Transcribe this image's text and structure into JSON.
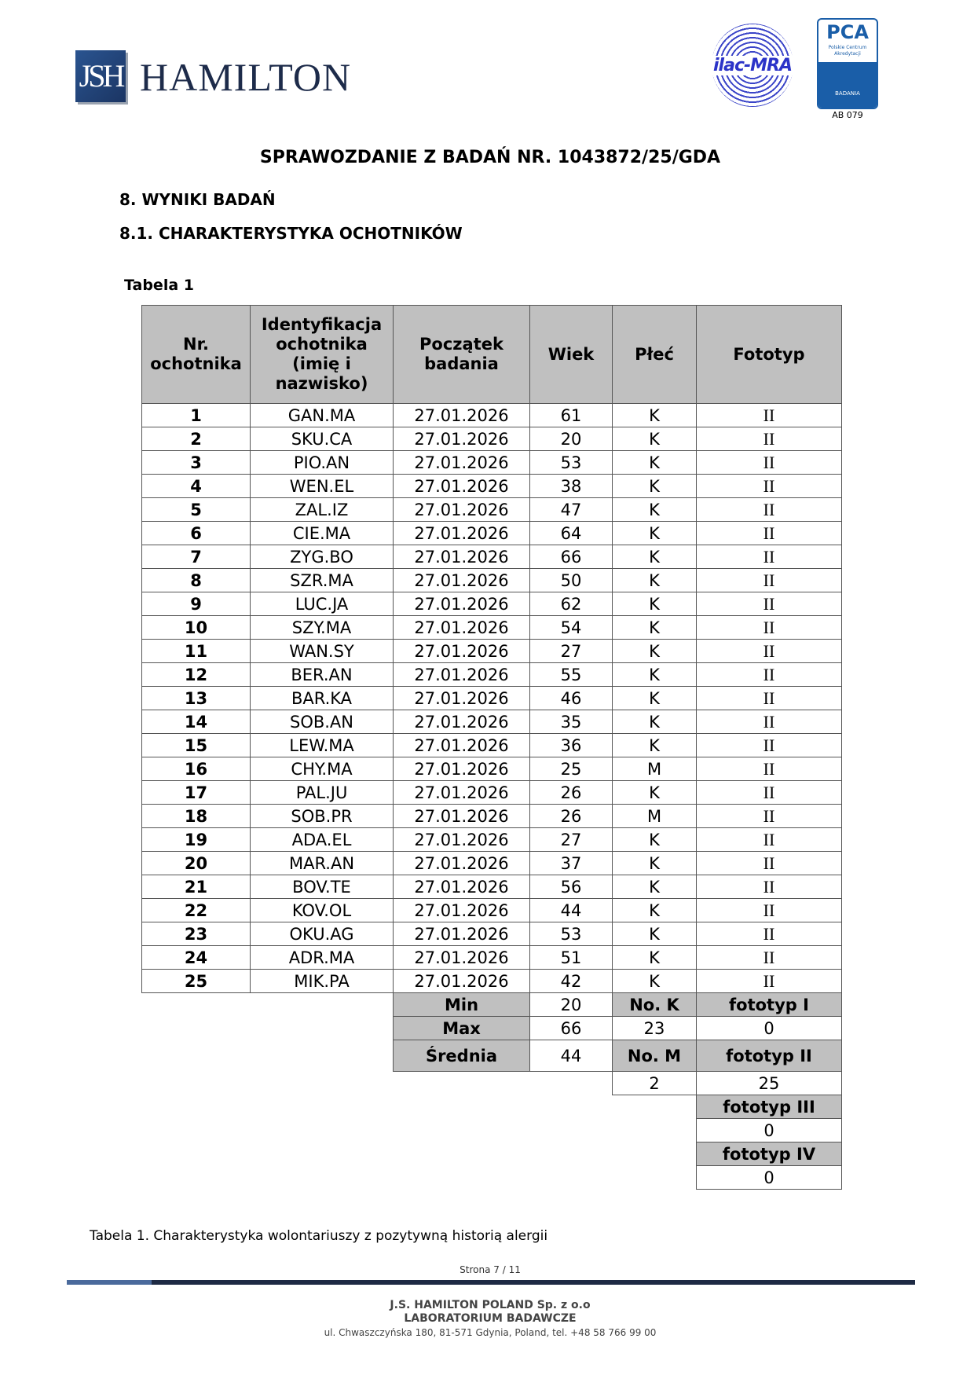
{
  "header": {
    "logo_text": "HAMILTON",
    "logo_mark": "JSH",
    "ilac_label": "ilac-MRA",
    "pca_label": "PCA",
    "pca_sub": "Polskie Centrum Akredytacji",
    "pca_badania": "BADANIA",
    "accreditation": "AB 079"
  },
  "title": "SPRAWOZDANIE Z BADAŃ NR. 1043872/25/GDA",
  "section": "8.  WYNIKI BADAŃ",
  "subsection": "8.1. CHARAKTERYSTYKA OCHOTNIKÓW",
  "table_label": "Tabela 1",
  "table": {
    "headers": [
      "Nr. ochotnika",
      "Identyfikacja ochotnika (imię i nazwisko)",
      "Początek badania",
      "Wiek",
      "Płeć",
      "Fototyp"
    ],
    "rows": [
      [
        "1",
        "GAN.MA",
        "27.01.2026",
        "61",
        "K",
        "II"
      ],
      [
        "2",
        "SKU.CA",
        "27.01.2026",
        "20",
        "K",
        "II"
      ],
      [
        "3",
        "PIO.AN",
        "27.01.2026",
        "53",
        "K",
        "II"
      ],
      [
        "4",
        "WEN.EL",
        "27.01.2026",
        "38",
        "K",
        "II"
      ],
      [
        "5",
        "ZAL.IZ",
        "27.01.2026",
        "47",
        "K",
        "II"
      ],
      [
        "6",
        "CIE.MA",
        "27.01.2026",
        "64",
        "K",
        "II"
      ],
      [
        "7",
        "ZYG.BO",
        "27.01.2026",
        "66",
        "K",
        "II"
      ],
      [
        "8",
        "SZR.MA",
        "27.01.2026",
        "50",
        "K",
        "II"
      ],
      [
        "9",
        "LUC.JA",
        "27.01.2026",
        "62",
        "K",
        "II"
      ],
      [
        "10",
        "SZY.MA",
        "27.01.2026",
        "54",
        "K",
        "II"
      ],
      [
        "11",
        "WAN.SY",
        "27.01.2026",
        "27",
        "K",
        "II"
      ],
      [
        "12",
        "BER.AN",
        "27.01.2026",
        "55",
        "K",
        "II"
      ],
      [
        "13",
        "BAR.KA",
        "27.01.2026",
        "46",
        "K",
        "II"
      ],
      [
        "14",
        "SOB.AN",
        "27.01.2026",
        "35",
        "K",
        "II"
      ],
      [
        "15",
        "LEW.MA",
        "27.01.2026",
        "36",
        "K",
        "II"
      ],
      [
        "16",
        "CHY.MA",
        "27.01.2026",
        "25",
        "M",
        "II"
      ],
      [
        "17",
        "PAL.JU",
        "27.01.2026",
        "26",
        "K",
        "II"
      ],
      [
        "18",
        "SOB.PR",
        "27.01.2026",
        "26",
        "M",
        "II"
      ],
      [
        "19",
        "ADA.EL",
        "27.01.2026",
        "27",
        "K",
        "II"
      ],
      [
        "20",
        "MAR.AN",
        "27.01.2026",
        "37",
        "K",
        "II"
      ],
      [
        "21",
        "BOV.TE",
        "27.01.2026",
        "56",
        "K",
        "II"
      ],
      [
        "22",
        "KOV.OL",
        "27.01.2026",
        "44",
        "K",
        "II"
      ],
      [
        "23",
        "OKU.AG",
        "27.01.2026",
        "53",
        "K",
        "II"
      ],
      [
        "24",
        "ADR.MA",
        "27.01.2026",
        "51",
        "K",
        "II"
      ],
      [
        "25",
        "MIK.PA",
        "27.01.2026",
        "42",
        "K",
        "II"
      ]
    ],
    "summary": {
      "min_label": "Min",
      "min": "20",
      "max_label": "Max",
      "max": "66",
      "avg_label": "Średnia",
      "avg": "44",
      "count_k_label": "No. K",
      "count_k": "23",
      "count_m_label": "No. M",
      "count_m": "2",
      "fototyp_1_label": "fototyp I",
      "fototyp_1": "0",
      "fototyp_2_label": "fototyp II",
      "fototyp_2": "25",
      "fototyp_3_label": "fototyp III",
      "fototyp_3": "0",
      "fototyp_4_label": "fototyp IV",
      "fototyp_4": "0"
    }
  },
  "caption": "Tabela 1. Charakterystyka wolontariuszy z pozytywną historią alergii",
  "page_number": "Strona 7 / 11",
  "footer": {
    "company": "J.S. HAMILTON POLAND Sp. z o.o",
    "lab": "LABORATORIUM BADAWCZE",
    "address": "ul. Chwaszczyńska 180, 81-571 Gdynia, Poland, tel. +48 58 766 99 00"
  },
  "colors": {
    "header_gray": "#c0c0c0",
    "brand_navy": "#1e2a44",
    "brand_blue": "#4a6a9c"
  }
}
